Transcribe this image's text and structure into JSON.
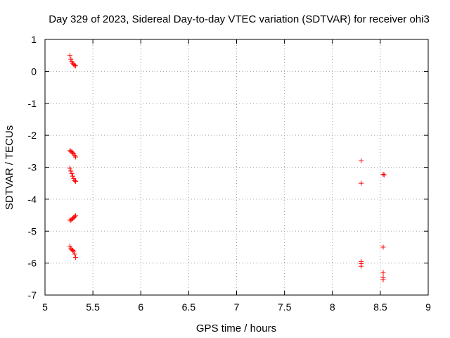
{
  "chart_data": {
    "type": "scatter",
    "title": "Day 329 of 2023, Sidereal Day-to-day VTEC variation (SDTVAR) for receiver ohi3",
    "xlabel": "GPS time / hours",
    "ylabel": "SDTVAR / TECUs",
    "xlim": [
      5,
      9
    ],
    "ylim": [
      -7,
      1
    ],
    "xticks": [
      5,
      5.5,
      6,
      6.5,
      7,
      7.5,
      8,
      8.5,
      9
    ],
    "xtick_labels": [
      "5",
      "5.5",
      "6",
      "6.5",
      "7",
      "7.5",
      "8",
      "8.5",
      "9"
    ],
    "yticks": [
      -7,
      -6,
      -5,
      -4,
      -3,
      -2,
      -1,
      0,
      1
    ],
    "ytick_labels": [
      "-7",
      "-6",
      "-5",
      "-4",
      "-3",
      "-2",
      "-1",
      "0",
      "1"
    ],
    "grid": true,
    "marker": "+",
    "color": "#ff0000",
    "series": [
      {
        "name": "SDTVAR",
        "points": [
          [
            5.26,
            0.5
          ],
          [
            5.27,
            0.38
          ],
          [
            5.28,
            0.3
          ],
          [
            5.29,
            0.25
          ],
          [
            5.3,
            0.22
          ],
          [
            5.31,
            0.19
          ],
          [
            5.32,
            0.17
          ],
          [
            5.26,
            -2.48
          ],
          [
            5.27,
            -2.5
          ],
          [
            5.28,
            -2.52
          ],
          [
            5.29,
            -2.55
          ],
          [
            5.3,
            -2.58
          ],
          [
            5.31,
            -2.63
          ],
          [
            5.32,
            -2.68
          ],
          [
            5.26,
            -3.03
          ],
          [
            5.27,
            -3.12
          ],
          [
            5.28,
            -3.2
          ],
          [
            5.29,
            -3.28
          ],
          [
            5.3,
            -3.35
          ],
          [
            5.31,
            -3.42
          ],
          [
            5.32,
            -3.44
          ],
          [
            5.26,
            -4.65
          ],
          [
            5.27,
            -4.66
          ],
          [
            5.28,
            -4.63
          ],
          [
            5.29,
            -4.6
          ],
          [
            5.3,
            -4.57
          ],
          [
            5.31,
            -4.55
          ],
          [
            5.32,
            -4.52
          ],
          [
            5.26,
            -5.47
          ],
          [
            5.27,
            -5.55
          ],
          [
            5.28,
            -5.58
          ],
          [
            5.29,
            -5.6
          ],
          [
            5.3,
            -5.63
          ],
          [
            5.31,
            -5.72
          ],
          [
            5.32,
            -5.82
          ],
          [
            8.3,
            -2.8
          ],
          [
            8.3,
            -3.5
          ],
          [
            8.3,
            -5.95
          ],
          [
            8.3,
            -6.02
          ],
          [
            8.3,
            -6.1
          ],
          [
            8.53,
            -3.22
          ],
          [
            8.54,
            -3.24
          ],
          [
            8.53,
            -5.5
          ],
          [
            8.53,
            -6.3
          ],
          [
            8.53,
            -6.45
          ],
          [
            8.53,
            -6.52
          ]
        ]
      }
    ]
  }
}
